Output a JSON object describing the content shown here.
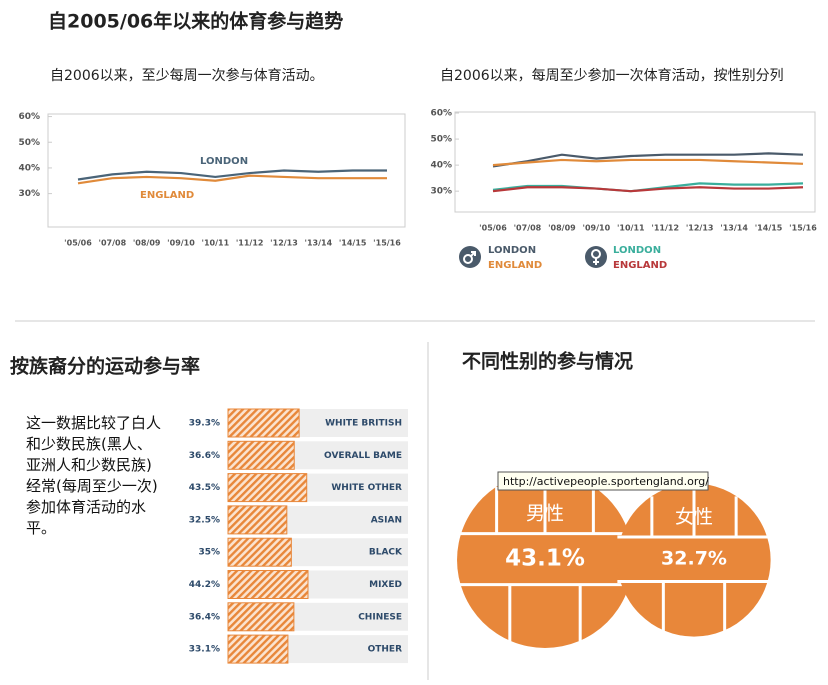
{
  "title": "自2005/06年以来的体育参与趋势",
  "tooltip": "http://activepeople.sportengland.org/",
  "chart_data": [
    {
      "type": "line",
      "subtitle": "自2006以来，至少每周一次参与体育活动。",
      "categories": [
        "'05/06",
        "'07/08",
        "'08/09",
        "'09/10",
        "'10/11",
        "'11/12",
        "'12/13",
        "'13/14",
        "'14/15",
        "'15/16"
      ],
      "series": [
        {
          "name": "LONDON",
          "color": "#4a6478",
          "values": [
            35.5,
            37.5,
            38.5,
            38,
            36.5,
            38,
            39,
            38.5,
            39,
            39
          ]
        },
        {
          "name": "ENGLAND",
          "color": "#e08a3a",
          "values": [
            34,
            36,
            36.5,
            36,
            35,
            37,
            36.5,
            36,
            36,
            36
          ]
        }
      ],
      "ylim": [
        17,
        61
      ],
      "yticks": [
        {
          "value": 30,
          "label": "30%"
        },
        {
          "value": 40,
          "label": "40%"
        },
        {
          "value": 50,
          "label": "50%"
        },
        {
          "value": 60,
          "label": "60%"
        }
      ],
      "grid": false
    },
    {
      "type": "line",
      "subtitle": "自2006以来，每周至少参加一次体育活动，按性别分列",
      "categories": [
        "'05/06",
        "'07/08",
        "'08/09",
        "'09/10",
        "'10/11",
        "'11/12",
        "'12/13",
        "'13/14",
        "'14/15",
        "'15/16"
      ],
      "series": [
        {
          "name": "LONDON",
          "color": "#4a5a6a",
          "values": [
            39.5,
            41.5,
            44,
            42.5,
            43.5,
            44,
            44,
            44,
            44.5,
            44
          ]
        },
        {
          "name": "ENGLAND",
          "color": "#e08a3a",
          "values": [
            40,
            41,
            42,
            41.5,
            42,
            42,
            42,
            41.5,
            41,
            40.5
          ]
        },
        {
          "name": "LONDON",
          "color": "#3aae9c",
          "values": [
            30.5,
            32,
            32,
            31,
            30,
            31.5,
            33,
            32.5,
            32.5,
            33
          ]
        },
        {
          "name": "ENGLAND",
          "color": "#b8383a",
          "values": [
            30,
            31.5,
            31.5,
            31,
            30,
            31,
            31.5,
            31,
            31,
            31.5
          ]
        }
      ],
      "ylim": [
        22,
        60.4
      ],
      "yticks": [
        {
          "value": 30,
          "label": "30%"
        },
        {
          "value": 40,
          "label": "40%"
        },
        {
          "value": 50,
          "label": "50%"
        },
        {
          "value": 60,
          "label": "60%"
        }
      ],
      "grid": false
    },
    {
      "type": "bar",
      "orientation": "horizontal",
      "title": "按族裔分的运动参与率",
      "description": "这一数据比较了白人和少数民族(黑人、亚洲人和少数民族)经常(每周至少一次)参加体育活动的水平。",
      "categories": [
        "WHITE BRITISH",
        "OVERALL BAME",
        "WHITE OTHER",
        "ASIAN",
        "BLACK",
        "MIXED",
        "CHINESE",
        "OTHER"
      ],
      "values": [
        39.3,
        36.6,
        43.5,
        32.5,
        35,
        44.2,
        36.4,
        33.1
      ],
      "value_labels": [
        "39.3%",
        "36.6%",
        "43.5%",
        "32.5%",
        "35%",
        "44.2%",
        "36.4%",
        "33.1%"
      ],
      "color": "#e8873a"
    },
    {
      "type": "ball",
      "title": "不同性别的参与情况",
      "categories": [
        "男性",
        "女性"
      ],
      "values": [
        43.1,
        32.7
      ],
      "value_labels": [
        "43.1%",
        "32.7%"
      ],
      "color": "#e8873a"
    }
  ]
}
